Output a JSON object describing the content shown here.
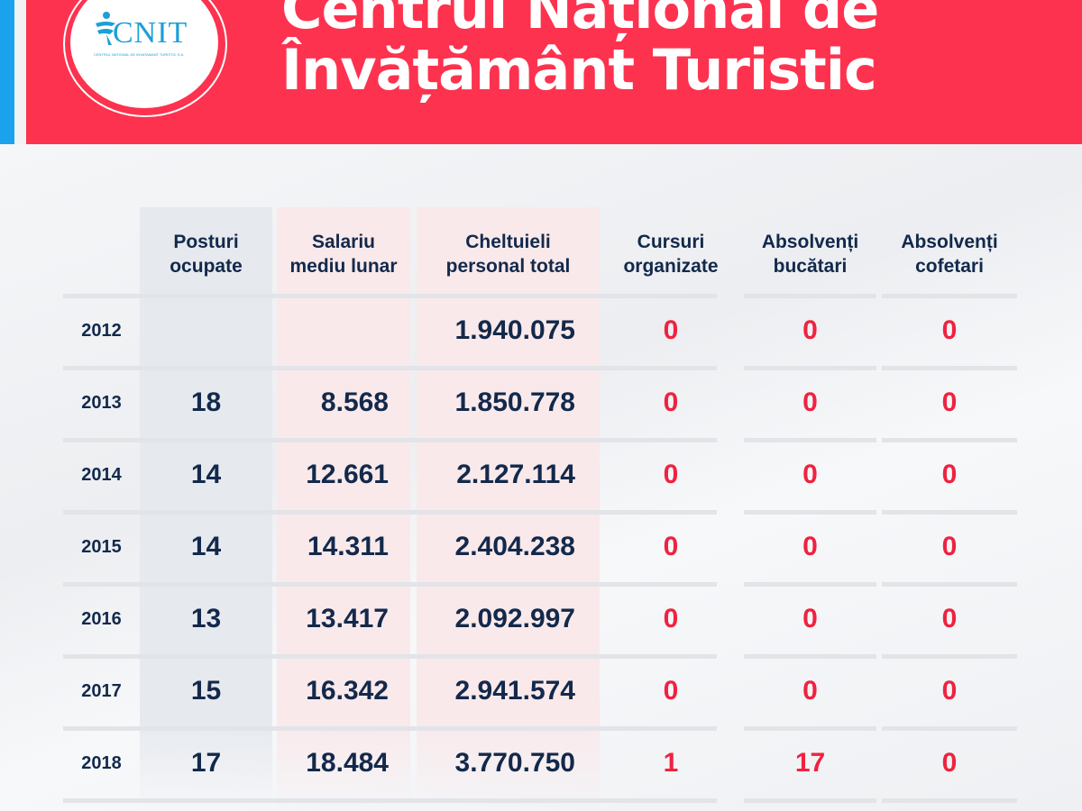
{
  "header": {
    "title_line1": "Centrul Național de",
    "title_line2": "Învățământ Turistic",
    "logo": {
      "name": "CNIT",
      "subtitle": "CENTRUL NATIONAL DE INVATAMANT TURISTIC S.A."
    }
  },
  "table": {
    "columns": [
      "Posturi ocupate",
      "Salariu mediu lunar",
      "Cheltuieli personal total",
      "Cursuri organizate",
      "Absolvenți bucătari",
      "Absolvenți cofetari"
    ],
    "columns_split": [
      [
        "Posturi",
        "ocupate"
      ],
      [
        "Salariu",
        "mediu lunar"
      ],
      [
        "Cheltuieli",
        "personal total"
      ],
      [
        "Cursuri",
        "organizate"
      ],
      [
        "Absolvenți",
        "bucătari"
      ],
      [
        "Absolvenți",
        "cofetari"
      ]
    ],
    "rows": [
      {
        "year": "2012",
        "posturi": "",
        "salariu": "",
        "cheltuieli": "1.940.075",
        "cursuri": "0",
        "bucatari": "0",
        "cofetari": "0"
      },
      {
        "year": "2013",
        "posturi": "18",
        "salariu": "8.568",
        "cheltuieli": "1.850.778",
        "cursuri": "0",
        "bucatari": "0",
        "cofetari": "0"
      },
      {
        "year": "2014",
        "posturi": "14",
        "salariu": "12.661",
        "cheltuieli": "2.127.114",
        "cursuri": "0",
        "bucatari": "0",
        "cofetari": "0"
      },
      {
        "year": "2015",
        "posturi": "14",
        "salariu": "14.311",
        "cheltuieli": "2.404.238",
        "cursuri": "0",
        "bucatari": "0",
        "cofetari": "0"
      },
      {
        "year": "2016",
        "posturi": "13",
        "salariu": "13.417",
        "cheltuieli": "2.092.997",
        "cursuri": "0",
        "bucatari": "0",
        "cofetari": "0"
      },
      {
        "year": "2017",
        "posturi": "15",
        "salariu": "16.342",
        "cheltuieli": "2.941.574",
        "cursuri": "0",
        "bucatari": "0",
        "cofetari": "0"
      },
      {
        "year": "2018",
        "posturi": "17",
        "salariu": "18.484",
        "cheltuieli": "3.770.750",
        "cursuri": "1",
        "bucatari": "17",
        "cofetari": "0"
      }
    ]
  },
  "colors": {
    "header": "#fd324f",
    "accent_blue": "#1aa3ec",
    "text": "#13294b",
    "red_values": "#f0223f"
  }
}
